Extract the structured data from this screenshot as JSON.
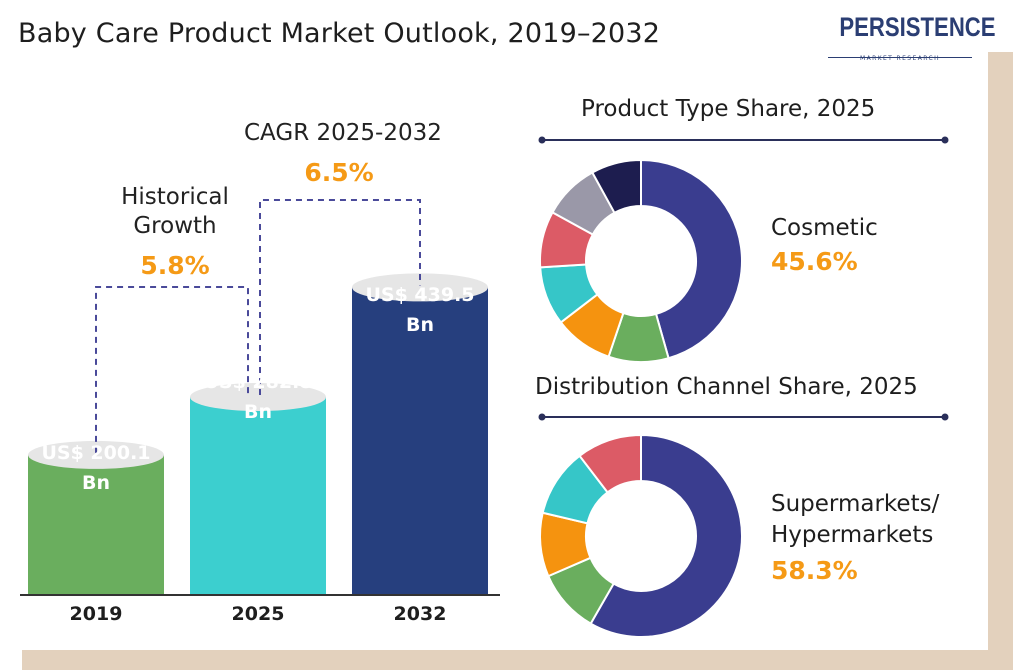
{
  "title": "Baby Care Product Market Outlook, 2019–2032",
  "logo": {
    "name": "PERSISTENCE",
    "tagline": "MARKET RESEARCH"
  },
  "colors": {
    "accent": "#f59a16",
    "navy": "#3a3d8f",
    "bar2019": "#6aae5e",
    "bar2025": "#3ccfcf",
    "bar2032": "#263f7e",
    "text": "#1e1e1e"
  },
  "growth": {
    "historical_label_1": "Historical",
    "historical_label_2": "Growth",
    "historical_value": "5.8%",
    "cagr_label": "CAGR 2025-2032",
    "cagr_value": "6.5%"
  },
  "chart_data": [
    {
      "type": "bar",
      "categories": [
        "2019",
        "2025",
        "2032"
      ],
      "values": [
        200.1,
        282.8,
        439.5
      ],
      "value_labels": [
        [
          "US$ 200.1",
          "Bn"
        ],
        [
          "US$ 282.8",
          "Bn"
        ],
        [
          "US$ 439.5",
          "Bn"
        ]
      ],
      "colors": [
        "#6aae5e",
        "#3ccfcf",
        "#263f7e"
      ],
      "unit": "US$ Bn"
    },
    {
      "type": "pie",
      "title": "Product Type Share, 2025",
      "highlight_label": "Cosmetic",
      "highlight_value": "45.6%",
      "slices": [
        {
          "value": 45.6,
          "color": "#3a3d8f"
        },
        {
          "value": 9.6,
          "color": "#6aae5e"
        },
        {
          "value": 9.4,
          "color": "#f5930f"
        },
        {
          "value": 9.4,
          "color": "#36c6c8"
        },
        {
          "value": 9.0,
          "color": "#dc5b66"
        },
        {
          "value": 9.0,
          "color": "#9a98a8"
        },
        {
          "value": 8.0,
          "color": "#1d1d4f"
        }
      ]
    },
    {
      "type": "pie",
      "title": "Distribution Channel Share, 2025",
      "highlight_label_1": "Supermarkets/",
      "highlight_label_2": "Hypermarkets",
      "highlight_value": "58.3%",
      "slices": [
        {
          "value": 58.3,
          "color": "#3a3d8f"
        },
        {
          "value": 10.2,
          "color": "#6aae5e"
        },
        {
          "value": 10.2,
          "color": "#f5930f"
        },
        {
          "value": 10.9,
          "color": "#36c6c8"
        },
        {
          "value": 10.4,
          "color": "#dc5b66"
        }
      ]
    }
  ]
}
